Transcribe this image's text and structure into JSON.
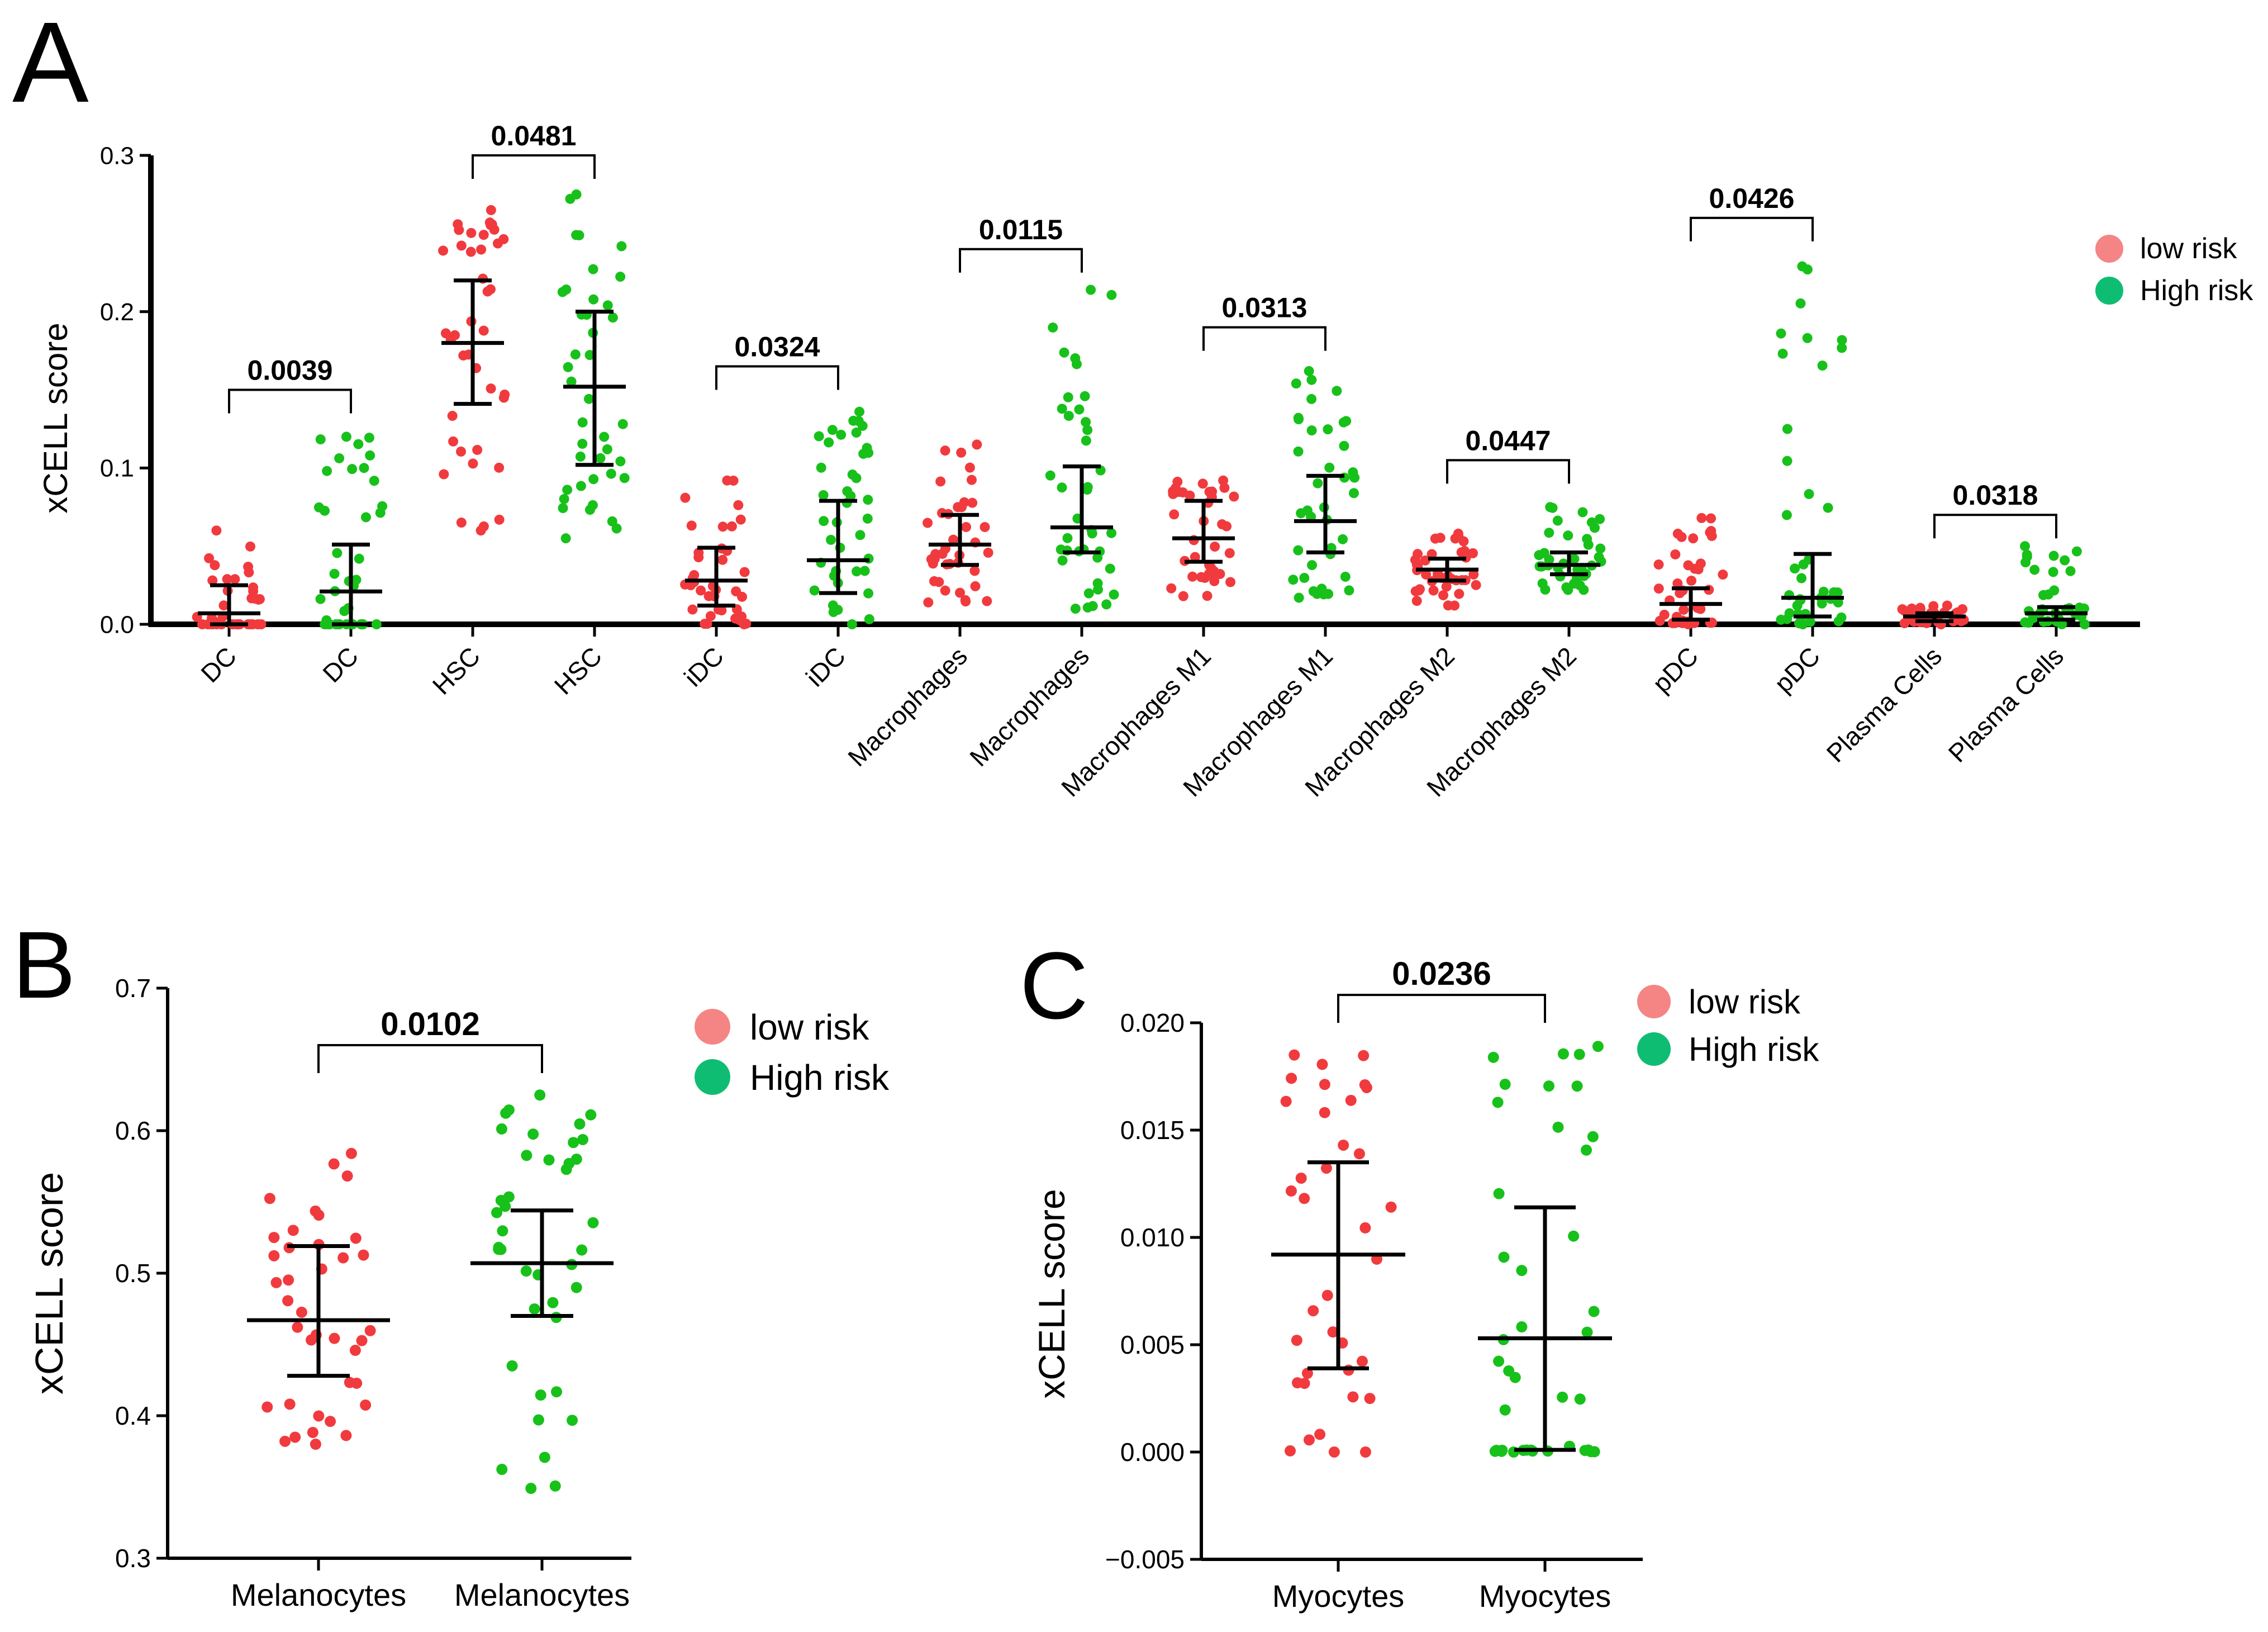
{
  "colors": {
    "low": "#f13a3e",
    "high": "#17c11a",
    "low_legend": "#f58585",
    "high_legend": "#0fbd72",
    "axis": "#000000"
  },
  "legend": {
    "low_label": "low risk",
    "high_label": "High risk"
  },
  "chart_data": [
    {
      "panel": "A",
      "type": "scatter",
      "ylabel": "xCELL score",
      "ylim": [
        0,
        0.3
      ],
      "yticks": [
        "0.0",
        "0.1",
        "0.2",
        "0.3"
      ],
      "groups": [
        {
          "label": "DC",
          "risk": "low",
          "median": 0.007,
          "lower": 0.0,
          "upper": 0.025,
          "min": 0.0,
          "max": 0.06,
          "n": 38
        },
        {
          "label": "DC",
          "risk": "high",
          "median": 0.021,
          "lower": 0.0,
          "upper": 0.051,
          "min": 0.0,
          "max": 0.12,
          "n": 40
        },
        {
          "label": "HSC",
          "risk": "low",
          "median": 0.18,
          "lower": 0.141,
          "upper": 0.22,
          "min": 0.06,
          "max": 0.265,
          "n": 40
        },
        {
          "label": "HSC",
          "risk": "high",
          "median": 0.152,
          "lower": 0.102,
          "upper": 0.2,
          "min": 0.055,
          "max": 0.275,
          "n": 40
        },
        {
          "label": "iDC",
          "risk": "low",
          "median": 0.028,
          "lower": 0.012,
          "upper": 0.049,
          "min": 0.0,
          "max": 0.092,
          "n": 38
        },
        {
          "label": "iDC",
          "risk": "high",
          "median": 0.041,
          "lower": 0.02,
          "upper": 0.079,
          "min": 0.0,
          "max": 0.136,
          "n": 40
        },
        {
          "label": "Macrophages",
          "risk": "low",
          "median": 0.051,
          "lower": 0.038,
          "upper": 0.07,
          "min": 0.014,
          "max": 0.115,
          "n": 38
        },
        {
          "label": "Macrophages",
          "risk": "high",
          "median": 0.062,
          "lower": 0.046,
          "upper": 0.101,
          "min": 0.01,
          "max": 0.214,
          "n": 40
        },
        {
          "label": "Macrophages M1",
          "risk": "low",
          "median": 0.055,
          "lower": 0.04,
          "upper": 0.079,
          "min": 0.018,
          "max": 0.092,
          "n": 38
        },
        {
          "label": "Macrophages M1",
          "risk": "high",
          "median": 0.066,
          "lower": 0.046,
          "upper": 0.095,
          "min": 0.017,
          "max": 0.162,
          "n": 40
        },
        {
          "label": "Macrophages M2",
          "risk": "low",
          "median": 0.035,
          "lower": 0.028,
          "upper": 0.042,
          "min": 0.012,
          "max": 0.058,
          "n": 40
        },
        {
          "label": "Macrophages M2",
          "risk": "high",
          "median": 0.038,
          "lower": 0.032,
          "upper": 0.046,
          "min": 0.022,
          "max": 0.075,
          "n": 40
        },
        {
          "label": "pDC",
          "risk": "low",
          "median": 0.013,
          "lower": 0.003,
          "upper": 0.023,
          "min": 0.0,
          "max": 0.068,
          "n": 38
        },
        {
          "label": "pDC",
          "risk": "high",
          "median": 0.017,
          "lower": 0.005,
          "upper": 0.045,
          "min": 0.0,
          "max": 0.229,
          "n": 40
        },
        {
          "label": "Plasma Cells",
          "risk": "low",
          "median": 0.005,
          "lower": 0.002,
          "upper": 0.007,
          "min": 0.0,
          "max": 0.012,
          "n": 36
        },
        {
          "label": "Plasma Cells",
          "risk": "high",
          "median": 0.007,
          "lower": 0.003,
          "upper": 0.011,
          "min": 0.0,
          "max": 0.05,
          "n": 38
        }
      ],
      "comparisons": [
        {
          "groups": [
            0,
            1
          ],
          "p": "0.0039",
          "y": 0.15
        },
        {
          "groups": [
            2,
            3
          ],
          "p": "0.0481",
          "y": 0.3
        },
        {
          "groups": [
            4,
            5
          ],
          "p": "0.0324",
          "y": 0.165
        },
        {
          "groups": [
            6,
            7
          ],
          "p": "0.0115",
          "y": 0.24
        },
        {
          "groups": [
            8,
            9
          ],
          "p": "0.0313",
          "y": 0.19
        },
        {
          "groups": [
            10,
            11
          ],
          "p": "0.0447",
          "y": 0.105
        },
        {
          "groups": [
            12,
            13
          ],
          "p": "0.0426",
          "y": 0.26
        },
        {
          "groups": [
            14,
            15
          ],
          "p": "0.0318",
          "y": 0.07
        }
      ]
    },
    {
      "panel": "B",
      "type": "scatter",
      "ylabel": "xCELL score",
      "ylim": [
        0.3,
        0.7
      ],
      "yticks": [
        "0.3",
        "0.4",
        "0.5",
        "0.6",
        "0.7"
      ],
      "groups": [
        {
          "label": "Melanocytes",
          "risk": "low",
          "median": 0.467,
          "lower": 0.428,
          "upper": 0.519,
          "min": 0.38,
          "max": 0.584,
          "n": 38
        },
        {
          "label": "Melanocytes",
          "risk": "high",
          "median": 0.507,
          "lower": 0.47,
          "upper": 0.544,
          "min": 0.349,
          "max": 0.625,
          "n": 40
        }
      ],
      "comparisons": [
        {
          "groups": [
            0,
            1
          ],
          "p": "0.0102",
          "y": 0.66
        }
      ]
    },
    {
      "panel": "C",
      "type": "scatter",
      "ylabel": "xCELL score",
      "ylim": [
        -0.005,
        0.02
      ],
      "yticks": [
        "−0.005",
        "0.000",
        "0.005",
        "0.010",
        "0.015",
        "0.020"
      ],
      "groups": [
        {
          "label": "Myocytes",
          "risk": "low",
          "median": 0.0092,
          "lower": 0.0039,
          "upper": 0.0135,
          "min": 0.0,
          "max": 0.0185,
          "n": 36
        },
        {
          "label": "Myocytes",
          "risk": "high",
          "median": 0.0053,
          "lower": 0.0001,
          "upper": 0.0114,
          "min": 0.0,
          "max": 0.0189,
          "n": 40
        }
      ],
      "comparisons": [
        {
          "groups": [
            0,
            1
          ],
          "p": "0.0236",
          "y": 0.0213
        }
      ]
    }
  ]
}
